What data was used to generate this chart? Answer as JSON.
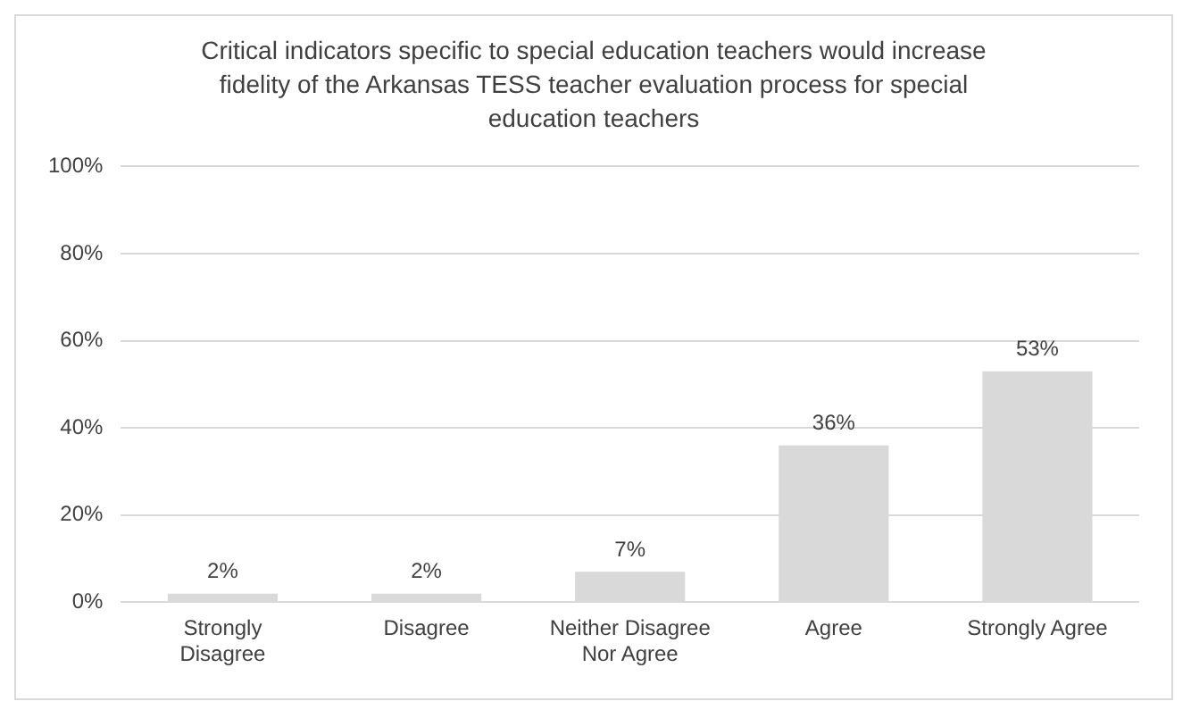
{
  "chart_data": {
    "type": "bar",
    "title": "Critical indicators specific to special education teachers would increase fidelity of the Arkansas TESS teacher evaluation process for special education teachers",
    "categories": [
      "Strongly Disagree",
      "Disagree",
      "Neither Disagree Nor Agree",
      "Agree",
      "Strongly Agree"
    ],
    "values": [
      2,
      2,
      7,
      36,
      53
    ],
    "color": "#d9d9d9",
    "value_labels": [
      "2%",
      "2%",
      "7%",
      "36%",
      "53%"
    ],
    "ylim": [
      0,
      100
    ],
    "yticks": [
      {
        "value": 0,
        "label": "0%"
      },
      {
        "value": 20,
        "label": "20%"
      },
      {
        "value": 40,
        "label": "40%"
      },
      {
        "value": 60,
        "label": "60%"
      },
      {
        "value": 80,
        "label": "80%"
      },
      {
        "value": 100,
        "label": "100%"
      }
    ],
    "grid": "y",
    "legend": false
  }
}
